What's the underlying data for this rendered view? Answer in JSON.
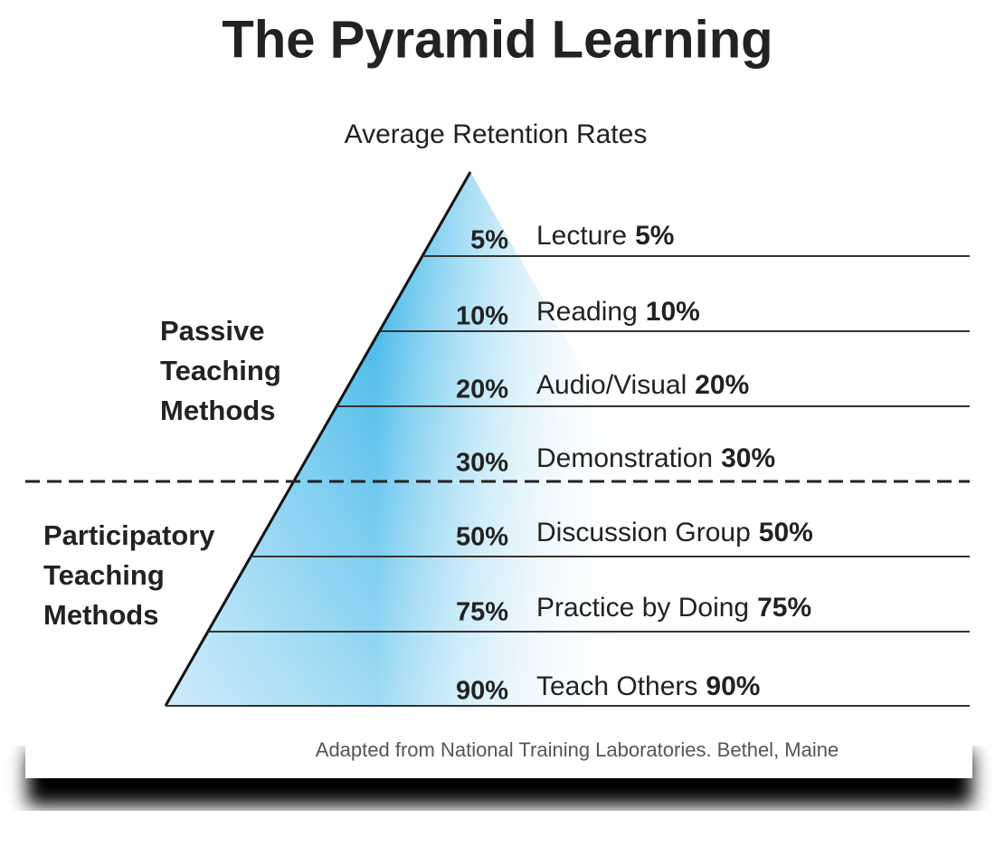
{
  "title": "The Pyramid Learning",
  "subtitle": "Average Retention Rates",
  "levels": [
    {
      "label": "Lecture",
      "percent": "5%"
    },
    {
      "label": "Reading",
      "percent": "10%"
    },
    {
      "label": "Audio/Visual",
      "percent": "20%"
    },
    {
      "label": "Demonstration",
      "percent": "30%"
    },
    {
      "label": "Discussion Group",
      "percent": "50%"
    },
    {
      "label": "Practice by Doing",
      "percent": "75%"
    },
    {
      "label": "Teach Others",
      "percent": "90%"
    }
  ],
  "groups": [
    {
      "lines": [
        "Passive",
        "Teaching",
        "Methods"
      ]
    },
    {
      "lines": [
        "Participatory",
        "Teaching",
        "Methods"
      ]
    }
  ],
  "source": "Adapted from National Training Laboratories. Bethel, Maine"
}
